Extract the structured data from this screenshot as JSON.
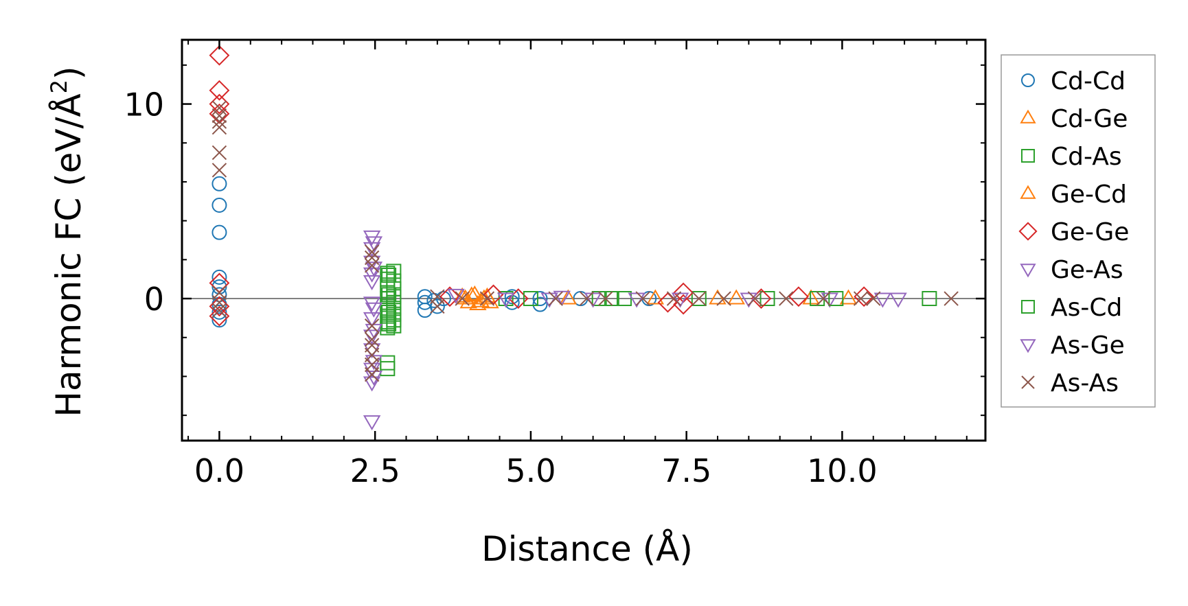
{
  "chart_data": {
    "type": "scatter",
    "title": "",
    "xlabel": "Distance (Å)",
    "ylabel_main": "Harmonic FC (eV/Å",
    "ylabel_sup": "2",
    "ylabel_close": ")",
    "xlim": [
      -0.6,
      12.3
    ],
    "ylim": [
      -7.3,
      13.3
    ],
    "xticks": [
      0.0,
      2.5,
      5.0,
      7.5,
      10.0
    ],
    "xtick_labels": [
      "0.0",
      "2.5",
      "5.0",
      "7.5",
      "10.0"
    ],
    "xticks_minor_step": 0.5,
    "yticks": [
      0,
      10
    ],
    "ytick_labels": [
      "0",
      "10"
    ],
    "yticks_minor_step": 2,
    "zero_line": true,
    "grid": false,
    "legend_position": "outside-right",
    "series": [
      {
        "name": "Cd-Cd",
        "marker": "circle",
        "color": "#1f77b4",
        "points": [
          [
            0.0,
            5.9
          ],
          [
            0.0,
            4.8
          ],
          [
            0.0,
            3.4
          ],
          [
            0.0,
            1.1
          ],
          [
            0.0,
            0.6
          ],
          [
            0.0,
            0.2
          ],
          [
            0.0,
            -0.3
          ],
          [
            0.0,
            -0.7
          ],
          [
            0.0,
            -1.1
          ],
          [
            3.3,
            0.1
          ],
          [
            3.3,
            -0.2
          ],
          [
            3.3,
            -0.6
          ],
          [
            3.45,
            -0.1
          ],
          [
            3.5,
            -0.4
          ],
          [
            3.6,
            0.0
          ],
          [
            4.7,
            0.1
          ],
          [
            4.7,
            -0.2
          ],
          [
            5.15,
            0.0
          ],
          [
            5.15,
            -0.3
          ],
          [
            5.8,
            0.0
          ],
          [
            6.9,
            0.0
          ]
        ]
      },
      {
        "name": "Cd-Ge",
        "marker": "triangle-up",
        "color": "#ff7f0e",
        "points": [
          [
            3.9,
            0.1
          ],
          [
            4.0,
            -0.2
          ],
          [
            4.1,
            0.2
          ],
          [
            4.15,
            -0.3
          ],
          [
            4.25,
            0.0
          ],
          [
            4.35,
            -0.2
          ],
          [
            5.6,
            0.0
          ],
          [
            7.0,
            0.0
          ],
          [
            8.3,
            0.0
          ],
          [
            9.5,
            0.0
          ]
        ]
      },
      {
        "name": "Cd-As",
        "marker": "square",
        "color": "#2ca02c",
        "points": [
          [
            2.7,
            1.3
          ],
          [
            2.7,
            1.0
          ],
          [
            2.7,
            0.7
          ],
          [
            2.7,
            0.3
          ],
          [
            2.7,
            0.0
          ],
          [
            2.7,
            -0.3
          ],
          [
            2.7,
            -0.6
          ],
          [
            2.7,
            -0.9
          ],
          [
            2.7,
            -1.2
          ],
          [
            2.7,
            -1.5
          ],
          [
            2.7,
            -3.3
          ],
          [
            2.7,
            -3.6
          ],
          [
            2.8,
            1.4
          ],
          [
            2.8,
            0.9
          ],
          [
            2.8,
            0.5
          ],
          [
            2.8,
            0.1
          ],
          [
            2.8,
            -0.2
          ],
          [
            2.8,
            -0.5
          ],
          [
            2.8,
            -0.8
          ],
          [
            2.8,
            -1.1
          ],
          [
            2.8,
            -1.4
          ],
          [
            4.6,
            0.0
          ],
          [
            6.1,
            0.0
          ],
          [
            6.3,
            0.0
          ],
          [
            7.7,
            0.0
          ],
          [
            8.8,
            0.0
          ],
          [
            9.6,
            0.0
          ],
          [
            11.4,
            0.0
          ]
        ]
      },
      {
        "name": "Ge-Cd",
        "marker": "triangle-up",
        "color": "#ff7f0e",
        "points": [
          [
            3.95,
            0.0
          ],
          [
            4.05,
            0.15
          ],
          [
            4.2,
            -0.15
          ],
          [
            4.3,
            0.1
          ],
          [
            8.0,
            0.0
          ],
          [
            10.1,
            0.0
          ]
        ]
      },
      {
        "name": "Ge-Ge",
        "marker": "diamond",
        "color": "#d62728",
        "points": [
          [
            0.0,
            12.5
          ],
          [
            0.0,
            10.7
          ],
          [
            0.0,
            10.0
          ],
          [
            0.0,
            9.5
          ],
          [
            0.0,
            0.8
          ],
          [
            0.0,
            -0.4
          ],
          [
            0.0,
            -0.9
          ],
          [
            3.7,
            0.1
          ],
          [
            4.4,
            0.2
          ],
          [
            4.8,
            0.0
          ],
          [
            7.2,
            -0.2
          ],
          [
            7.45,
            0.3
          ],
          [
            7.45,
            -0.3
          ],
          [
            8.7,
            0.0
          ],
          [
            9.3,
            0.1
          ],
          [
            10.35,
            0.1
          ]
        ]
      },
      {
        "name": "Ge-As",
        "marker": "triangle-down",
        "color": "#9467bd",
        "points": [
          [
            2.45,
            3.2
          ],
          [
            2.45,
            2.6
          ],
          [
            2.45,
            1.9
          ],
          [
            2.45,
            1.3
          ],
          [
            2.45,
            0.9
          ],
          [
            2.45,
            -0.2
          ],
          [
            2.45,
            -1.0
          ],
          [
            2.45,
            -1.9
          ],
          [
            2.45,
            -2.6
          ],
          [
            2.45,
            -3.6
          ],
          [
            2.45,
            -4.3
          ],
          [
            2.45,
            -6.3
          ],
          [
            3.8,
            0.2
          ],
          [
            5.5,
            0.1
          ],
          [
            6.0,
            0.0
          ],
          [
            7.4,
            0.0
          ],
          [
            8.5,
            0.0
          ],
          [
            9.8,
            0.0
          ],
          [
            10.65,
            0.0
          ],
          [
            10.9,
            0.0
          ]
        ]
      },
      {
        "name": "As-Cd",
        "marker": "square",
        "color": "#2ca02c",
        "points": [
          [
            2.72,
            1.2
          ],
          [
            2.72,
            0.2
          ],
          [
            2.72,
            -0.7
          ],
          [
            2.72,
            -1.3
          ],
          [
            5.0,
            0.0
          ],
          [
            6.5,
            0.0
          ],
          [
            9.9,
            0.0
          ]
        ]
      },
      {
        "name": "As-Ge",
        "marker": "triangle-down",
        "color": "#9467bd",
        "points": [
          [
            2.48,
            2.9
          ],
          [
            2.48,
            1.6
          ],
          [
            2.48,
            -0.5
          ],
          [
            2.48,
            -1.6
          ],
          [
            2.48,
            -3.2
          ],
          [
            2.48,
            -4.0
          ],
          [
            4.6,
            0.0
          ],
          [
            5.3,
            0.0
          ],
          [
            6.7,
            0.0
          ]
        ]
      },
      {
        "name": "As-As",
        "marker": "x",
        "color": "#8c564b",
        "points": [
          [
            0.0,
            9.8
          ],
          [
            0.0,
            9.4
          ],
          [
            0.0,
            9.1
          ],
          [
            0.0,
            8.8
          ],
          [
            0.0,
            7.5
          ],
          [
            0.0,
            6.6
          ],
          [
            0.0,
            0.3
          ],
          [
            0.0,
            -0.2
          ],
          [
            0.0,
            -0.6
          ],
          [
            2.45,
            2.4
          ],
          [
            2.45,
            2.1
          ],
          [
            2.45,
            1.7
          ],
          [
            2.45,
            -1.4
          ],
          [
            2.45,
            -2.1
          ],
          [
            2.45,
            -2.4
          ],
          [
            2.45,
            -2.9
          ],
          [
            2.45,
            -3.4
          ],
          [
            2.45,
            -3.9
          ],
          [
            3.5,
            0.1
          ],
          [
            3.5,
            -0.4
          ],
          [
            3.9,
            0.0
          ],
          [
            4.3,
            0.0
          ],
          [
            5.4,
            0.0
          ],
          [
            5.9,
            0.0
          ],
          [
            6.2,
            0.0
          ],
          [
            6.8,
            0.0
          ],
          [
            7.3,
            0.0
          ],
          [
            7.7,
            0.0
          ],
          [
            8.1,
            0.0
          ],
          [
            8.6,
            0.0
          ],
          [
            9.1,
            0.0
          ],
          [
            9.7,
            0.0
          ],
          [
            10.3,
            0.0
          ],
          [
            10.5,
            0.0
          ],
          [
            11.75,
            0.0
          ]
        ]
      }
    ]
  }
}
